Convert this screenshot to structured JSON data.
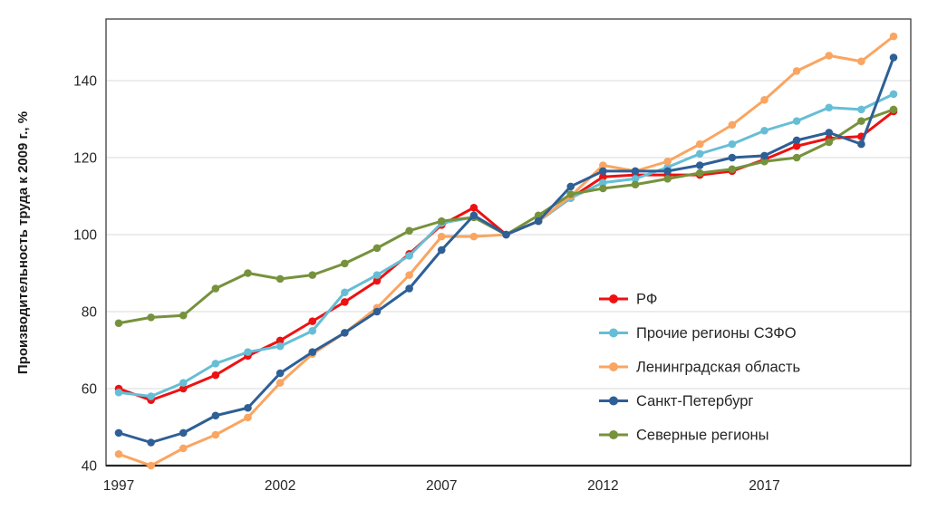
{
  "chart_data": {
    "type": "line",
    "title": "",
    "xlabel": "",
    "ylabel": "Производительность труда к 2009 г., %",
    "x": [
      1997,
      1998,
      1999,
      2000,
      2001,
      2002,
      2003,
      2004,
      2005,
      2006,
      2007,
      2008,
      2009,
      2010,
      2011,
      2012,
      2013,
      2014,
      2015,
      2016,
      2017,
      2018,
      2019,
      2020,
      2021
    ],
    "xticks": [
      1997,
      2002,
      2007,
      2012,
      2017
    ],
    "yticks": [
      40,
      60,
      80,
      100,
      120,
      140
    ],
    "ylim": [
      40,
      156
    ],
    "xlim": [
      1997,
      2021
    ],
    "grid": "horizontal",
    "legend_position": "inside-right",
    "series": [
      {
        "name": "РФ",
        "color": "#ee1111",
        "values": [
          60,
          57,
          60,
          63.5,
          68.5,
          72.5,
          77.5,
          82.5,
          88,
          95,
          102.5,
          107,
          100,
          103.5,
          109.5,
          115,
          115.5,
          115.5,
          115.5,
          116.5,
          119.5,
          123,
          125,
          125.5,
          132
        ]
      },
      {
        "name": "Прочие регионы СЗФО",
        "color": "#66bed6",
        "values": [
          59,
          58,
          61.5,
          66.5,
          69.5,
          71,
          75,
          85,
          89.5,
          94.5,
          103,
          104.5,
          100,
          103.5,
          109.5,
          113.5,
          114.5,
          117.5,
          121,
          123.5,
          127,
          129.5,
          133,
          132.5,
          136.5
        ]
      },
      {
        "name": "Ленинградская область",
        "color": "#faa561",
        "values": [
          43,
          40,
          44.5,
          48,
          52.5,
          61.5,
          69,
          74.5,
          81,
          89.5,
          99.5,
          99.5,
          100,
          103.5,
          110,
          118,
          116.5,
          119,
          123.5,
          128.5,
          135,
          142.5,
          146.5,
          145,
          151.5
        ]
      },
      {
        "name": "Санкт-Петербург",
        "color": "#2e5f96",
        "values": [
          48.5,
          46,
          48.5,
          53,
          55,
          64,
          69.5,
          74.5,
          80,
          86,
          96,
          105,
          100,
          103.5,
          112.5,
          116.5,
          116.5,
          116.5,
          118,
          120,
          120.5,
          124.5,
          126.5,
          123.5,
          146
        ]
      },
      {
        "name": "Северные регионы",
        "color": "#76923c",
        "values": [
          77,
          78.5,
          79,
          86,
          90,
          88.5,
          89.5,
          92.5,
          96.5,
          101,
          103.5,
          104.5,
          100,
          105,
          110.5,
          112,
          113,
          114.5,
          116,
          117,
          119,
          120,
          124,
          129.5,
          132.5
        ]
      }
    ],
    "colors": {
      "grid": "#d9d9d9",
      "plot_border": "#4a4a4a",
      "axis_line": "#262626",
      "tick_text": "#262626",
      "axis_title_text": "#1a1a1a"
    }
  }
}
